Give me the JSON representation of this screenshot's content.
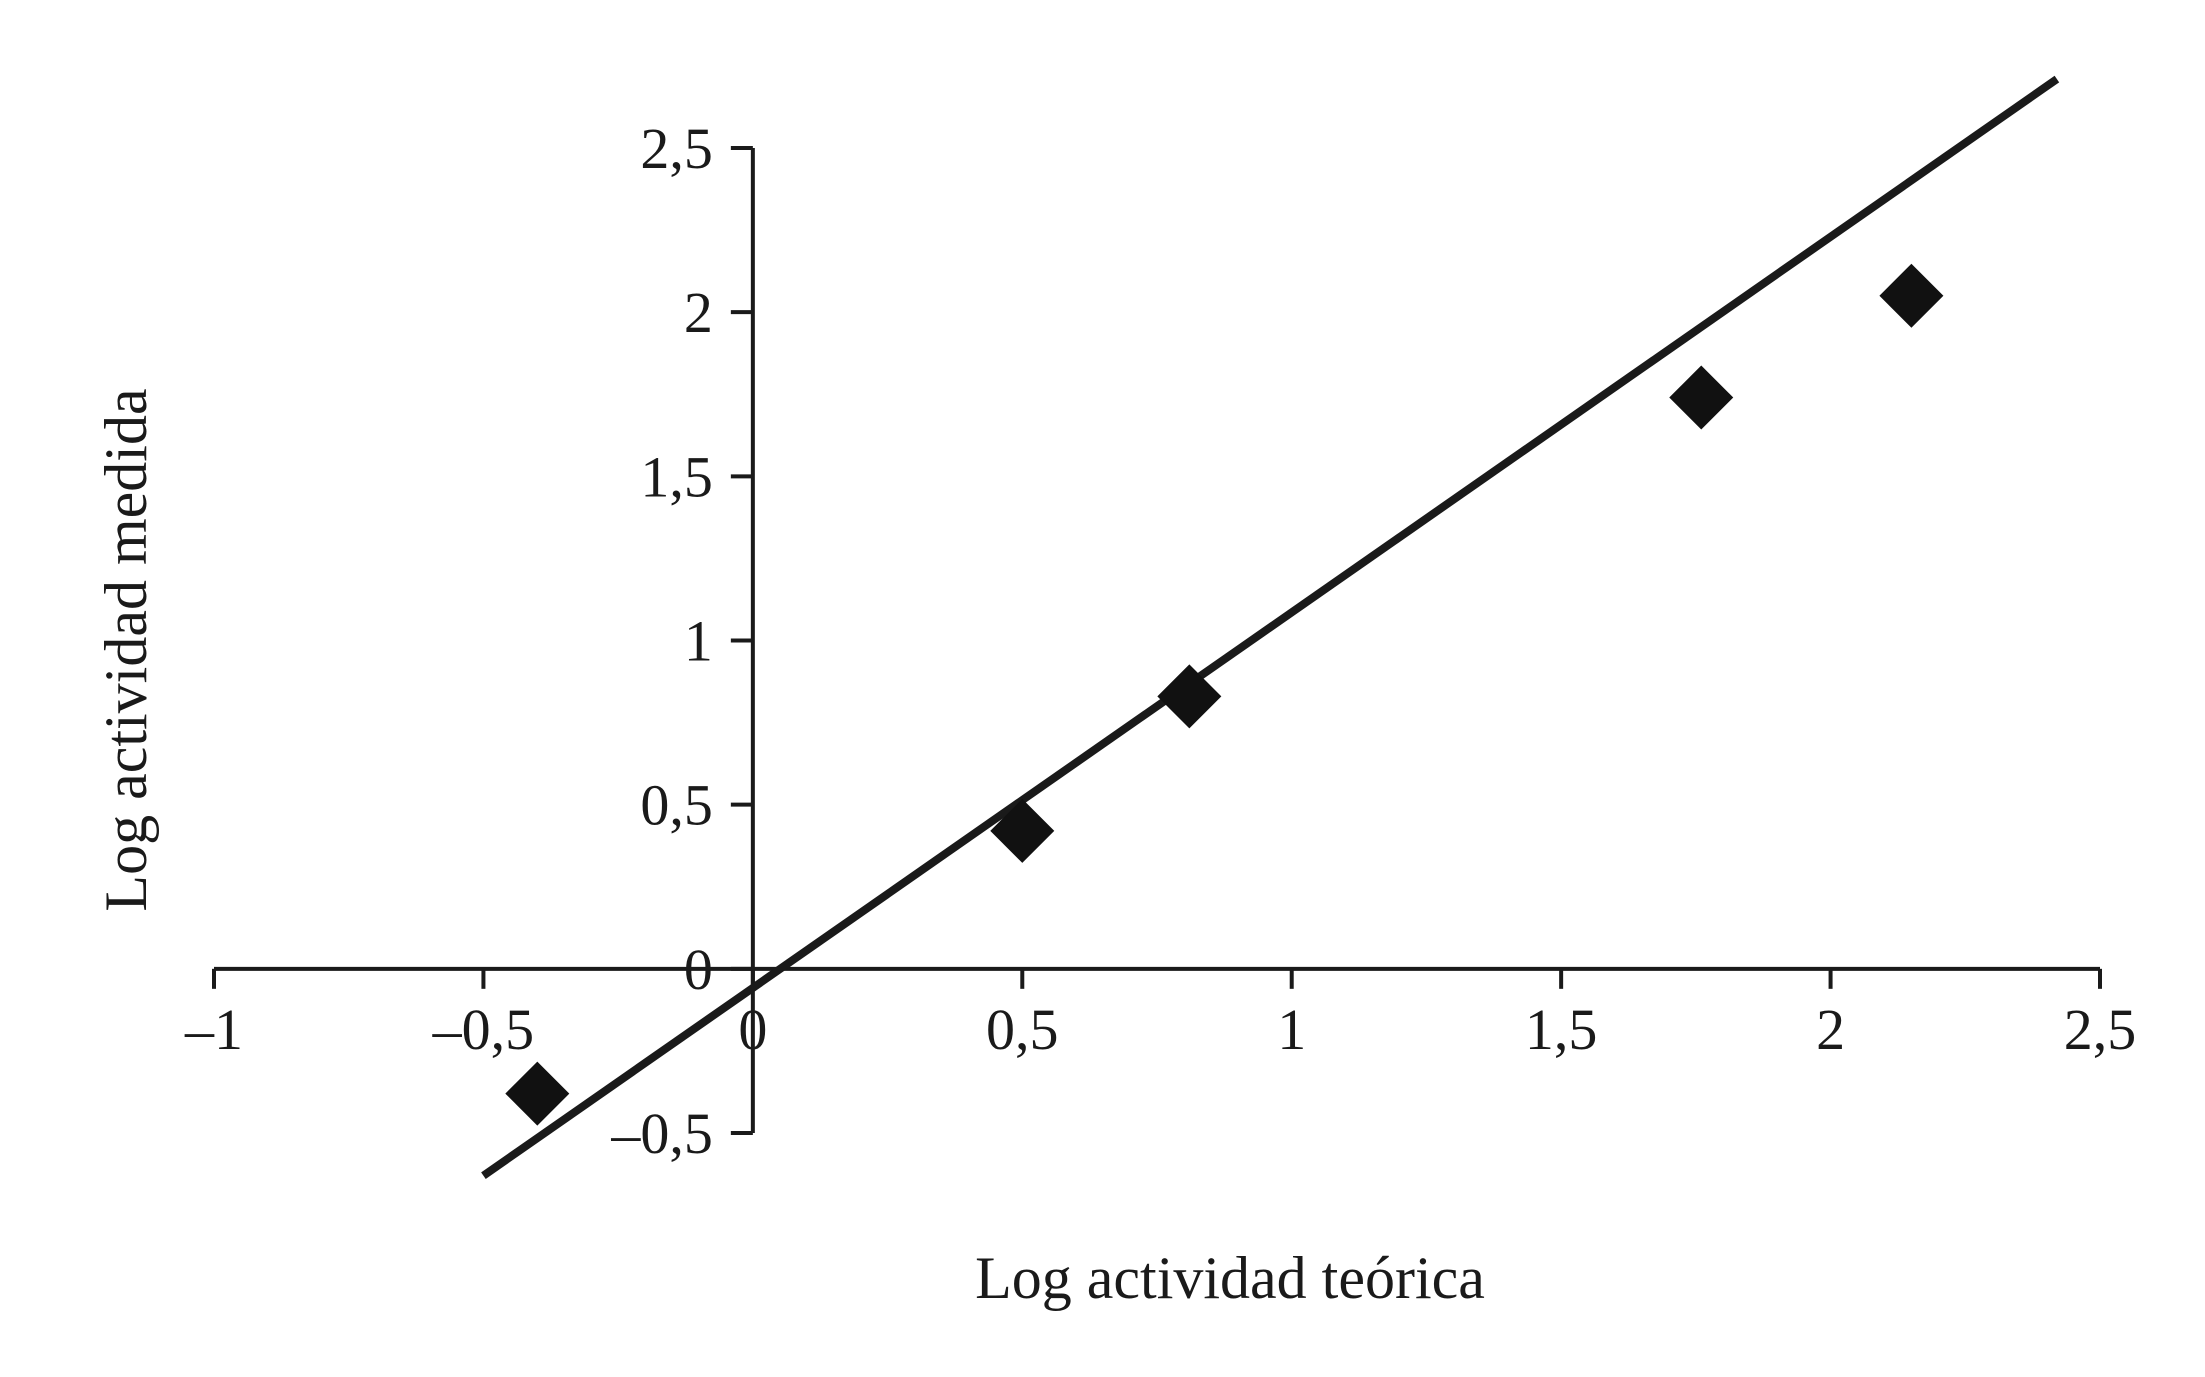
{
  "chart_data": {
    "type": "scatter",
    "xlabel": "Log actividad teórica",
    "ylabel": "Log actividad medida",
    "xlim": [
      -1,
      2.5
    ],
    "ylim": [
      -0.5,
      2.5
    ],
    "x_ticks": [
      -1,
      -0.5,
      0,
      0.5,
      1,
      1.5,
      2,
      2.5
    ],
    "x_tick_labels": [
      "–1",
      "–0,5",
      "0",
      "0,5",
      "1",
      "1,5",
      "2",
      "2,5"
    ],
    "y_ticks": [
      -0.5,
      0,
      0.5,
      1,
      1.5,
      2,
      2.5
    ],
    "y_tick_labels": [
      "–0,5",
      "0",
      "0,5",
      "1",
      "1,5",
      "2",
      "2,5"
    ],
    "grid": false,
    "colors": {
      "axis": "#1a1a1a",
      "points": "#111111",
      "line": "#1a1a1a"
    },
    "series": [
      {
        "marker": "diamond",
        "points": [
          {
            "x": -0.4,
            "y": -0.38
          },
          {
            "x": 0.5,
            "y": 0.42
          },
          {
            "x": 0.81,
            "y": 0.83
          },
          {
            "x": 1.76,
            "y": 1.74
          },
          {
            "x": 2.15,
            "y": 2.05
          }
        ]
      }
    ],
    "trendline": {
      "x": [
        -0.5,
        2.42
      ],
      "y": [
        -0.63,
        2.71
      ]
    }
  }
}
